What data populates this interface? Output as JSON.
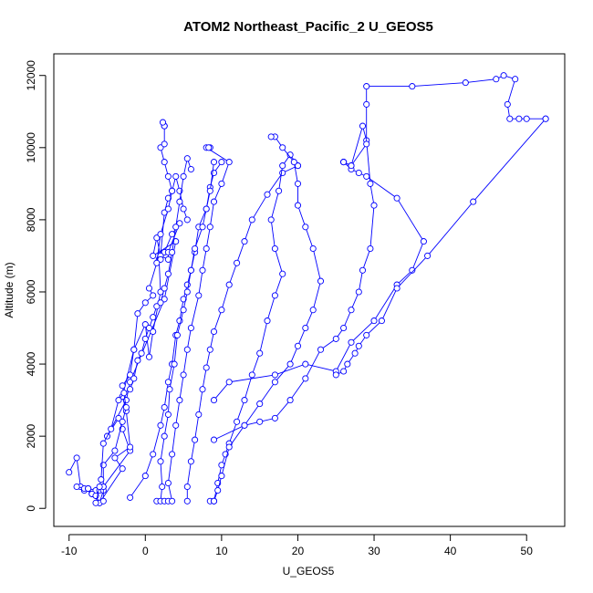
{
  "chart_data": {
    "type": "line",
    "title": "ATOM2 Northeast_Pacific_2 U_GEOS5",
    "xlabel": "U_GEOS5",
    "ylabel": "Altitude (m)",
    "xlim": [
      -12,
      55
    ],
    "ylim": [
      -500,
      12600
    ],
    "xticks": [
      -10,
      0,
      10,
      20,
      30,
      40,
      50
    ],
    "yticks": [
      0,
      2000,
      4000,
      6000,
      8000,
      10000,
      12000
    ],
    "color": "#0000ff",
    "marker": "open-circle",
    "grid": false,
    "legend": "none",
    "series": [
      {
        "x": [
          -10.0,
          -9.0,
          -8.5,
          -8.0,
          -7.5,
          -7.0,
          -6.5,
          -7.0,
          -6.0,
          -5.5,
          -2.0,
          -3.0,
          -3.5,
          -5.0,
          -2.5,
          -2.0,
          2.5,
          4.0,
          1.0,
          1.5,
          2.0,
          2.5,
          3.0,
          3.5,
          3.0,
          2.5,
          2.0,
          2.5,
          2.5,
          2.5,
          2.3
        ],
        "y": [
          1000,
          1400,
          600,
          500,
          550,
          400,
          350,
          450,
          550,
          600,
          1600,
          2200,
          2500,
          2000,
          3000,
          3500,
          5800,
          7400,
          7000,
          7500,
          7000,
          8200,
          8600,
          8800,
          9200,
          9600,
          10000,
          10100,
          10600,
          10600,
          10700
        ]
      },
      {
        "x": [
          -9.0,
          -8.0,
          -7.5,
          -7.0,
          -6.5,
          -6.0,
          -5.5,
          -6.0,
          -3.0,
          -4.0,
          -2.0,
          -2.5,
          -3.0,
          -1.5,
          0.0,
          0.5,
          1.0,
          2.0,
          1.8,
          2.5,
          3.5,
          4.5,
          3.0,
          3.0,
          2.0,
          2.0
        ],
        "y": [
          600,
          550,
          550,
          400,
          500,
          500,
          500,
          150,
          1100,
          1400,
          1700,
          2700,
          3100,
          4400,
          5100,
          4200,
          4900,
          6000,
          6900,
          7100,
          7600,
          7900,
          7100,
          6900,
          7000,
          6900
        ]
      },
      {
        "x": [
          -7.5,
          -7.0,
          -6.5,
          -6.0,
          -5.5,
          -5.5,
          -5.5,
          -4.0,
          -3.0,
          -2.5,
          -3.0,
          -2.0,
          -1.5,
          -1.0,
          0.0,
          1.0,
          0.5,
          1.5,
          2.0,
          3.0,
          3.5,
          4.0,
          4.5,
          5.0,
          5.5
        ],
        "y": [
          550,
          400,
          350,
          150,
          200,
          600,
          1200,
          1600,
          2400,
          2800,
          3400,
          3700,
          4400,
          5400,
          5700,
          5900,
          6100,
          6800,
          7600,
          8300,
          8800,
          9200,
          8800,
          8300,
          8000
        ]
      },
      {
        "x": [
          -6.5,
          -6.0,
          -5.8,
          -5.5,
          -4.5,
          -3.5,
          -2.8,
          -2.0,
          -1.5,
          -1.0,
          -0.5,
          0.0,
          0.5,
          1.0,
          1.5,
          2.0,
          2.5,
          3.0,
          3.5,
          4.0,
          4.5,
          5.0,
          5.5,
          6.0
        ],
        "y": [
          150,
          600,
          800,
          1800,
          2200,
          3000,
          3200,
          3300,
          3600,
          4100,
          4300,
          4700,
          5000,
          5300,
          5600,
          5700,
          6100,
          6500,
          7100,
          7800,
          8500,
          9200,
          9700,
          9400
        ]
      },
      {
        "x": [
          -2.0,
          0.0,
          1.0,
          2.0,
          2.5,
          3.0,
          3.5,
          4.0,
          4.5,
          5.0,
          5.5,
          6.0,
          6.5,
          7.0,
          8.0,
          8.5,
          9.0,
          10.0
        ],
        "y": [
          300,
          900,
          1500,
          2300,
          2800,
          3500,
          4000,
          4800,
          5200,
          5800,
          6200,
          6600,
          7100,
          7800,
          8300,
          8900,
          9300,
          9600
        ]
      },
      {
        "x": [
          1.5,
          2.0,
          2.2,
          2.0,
          2.5,
          3.0,
          3.2,
          3.8,
          4.2,
          5.0,
          5.5,
          6.0,
          6.5,
          7.5,
          8.0,
          8.5,
          9.0
        ],
        "y": [
          200,
          200,
          600,
          1300,
          2000,
          2600,
          3300,
          4000,
          4800,
          5500,
          6000,
          6600,
          7200,
          7800,
          8300,
          8800,
          9600
        ]
      },
      {
        "x": [
          2.5,
          3.0,
          3.5,
          3.0,
          3.5,
          4.0,
          4.5,
          5.0,
          5.5,
          6.0,
          7.0,
          7.5,
          8.0,
          8.5,
          9.0,
          10.0,
          11.0,
          8.0,
          8.5,
          8.3
        ],
        "y": [
          200,
          200,
          200,
          700,
          1500,
          2300,
          3000,
          3700,
          4400,
          5000,
          5900,
          6600,
          7200,
          7800,
          8500,
          9000,
          9600,
          10000,
          10000,
          10000
        ]
      },
      {
        "x": [
          5.5,
          5.5,
          6.0,
          6.5,
          7.0,
          7.5,
          8.0,
          8.5,
          9.0,
          10.0,
          11.0,
          12.0,
          13.0,
          14.0,
          16.0,
          18.0,
          20.0
        ],
        "y": [
          200,
          600,
          1300,
          1900,
          2600,
          3300,
          3900,
          4400,
          4900,
          5500,
          6200,
          6800,
          7400,
          8000,
          8700,
          9300,
          9500
        ]
      },
      {
        "x": [
          8.5,
          9.0,
          9.5,
          10.0,
          10.5,
          11.0,
          12.0,
          13.0,
          14.0,
          15.0,
          16.0,
          17.0,
          18.0,
          17.0,
          16.5,
          17.5,
          18.0,
          19.0,
          20.0
        ],
        "y": [
          200,
          200,
          700,
          1200,
          1500,
          1800,
          2400,
          3000,
          3700,
          4300,
          5200,
          5900,
          6500,
          7200,
          8000,
          8800,
          9500,
          9800,
          9500
        ]
      },
      {
        "x": [
          9.0,
          9.0,
          9.5,
          10.0,
          11.0,
          13.0,
          15.0,
          17.0,
          19.0,
          20.0,
          21.0,
          22.0,
          23.0,
          22.0,
          21.0,
          20.0,
          20.0,
          19.5,
          18.0,
          17.0,
          16.5
        ],
        "y": [
          200,
          200,
          500,
          900,
          1700,
          2300,
          2900,
          3500,
          4000,
          4500,
          5000,
          5500,
          6300,
          7200,
          7800,
          8400,
          9000,
          9600,
          10000,
          10300,
          10300
        ]
      },
      {
        "x": [
          9.0,
          13.0,
          15.0,
          17.0,
          19.0,
          21.0,
          23.0,
          25.0,
          26.0,
          27.0,
          28.0,
          28.5,
          29.5,
          30.0,
          29.5,
          29.0,
          28.5,
          27.0,
          26.0,
          26.0
        ],
        "y": [
          1900,
          2300,
          2400,
          2500,
          3000,
          3600,
          4400,
          4700,
          5000,
          5500,
          6000,
          6600,
          7200,
          8400,
          9000,
          10200,
          10600,
          9500,
          9600,
          9600
        ]
      },
      {
        "x": [
          9.0,
          11.0,
          17.0,
          21.0,
          25.0,
          27.0,
          30.0,
          33.0,
          35.0,
          36.5,
          33.0,
          29.0,
          28.0,
          27.0,
          26.0,
          27.0,
          29.0,
          29.0,
          29.0,
          35.0,
          42.0,
          46.0,
          47.0,
          48.5,
          47.5,
          47.8,
          49.0,
          50.0,
          52.5
        ],
        "y": [
          3000,
          3500,
          3700,
          4000,
          3800,
          4600,
          5200,
          6200,
          6600,
          7400,
          8600,
          9200,
          9300,
          9400,
          9600,
          9500,
          10100,
          11200,
          11700,
          11700,
          11800,
          11900,
          12000,
          11900,
          11200,
          10800,
          10800,
          10800,
          10800
        ]
      },
      {
        "x": [
          52.5,
          43.0,
          37.0,
          33.0,
          31.0,
          29.0,
          28.0,
          27.5,
          26.5,
          26.0,
          25.0
        ],
        "y": [
          10800,
          8500,
          7000,
          6100,
          5200,
          4800,
          4500,
          4300,
          4000,
          3800,
          3700
        ]
      }
    ]
  }
}
